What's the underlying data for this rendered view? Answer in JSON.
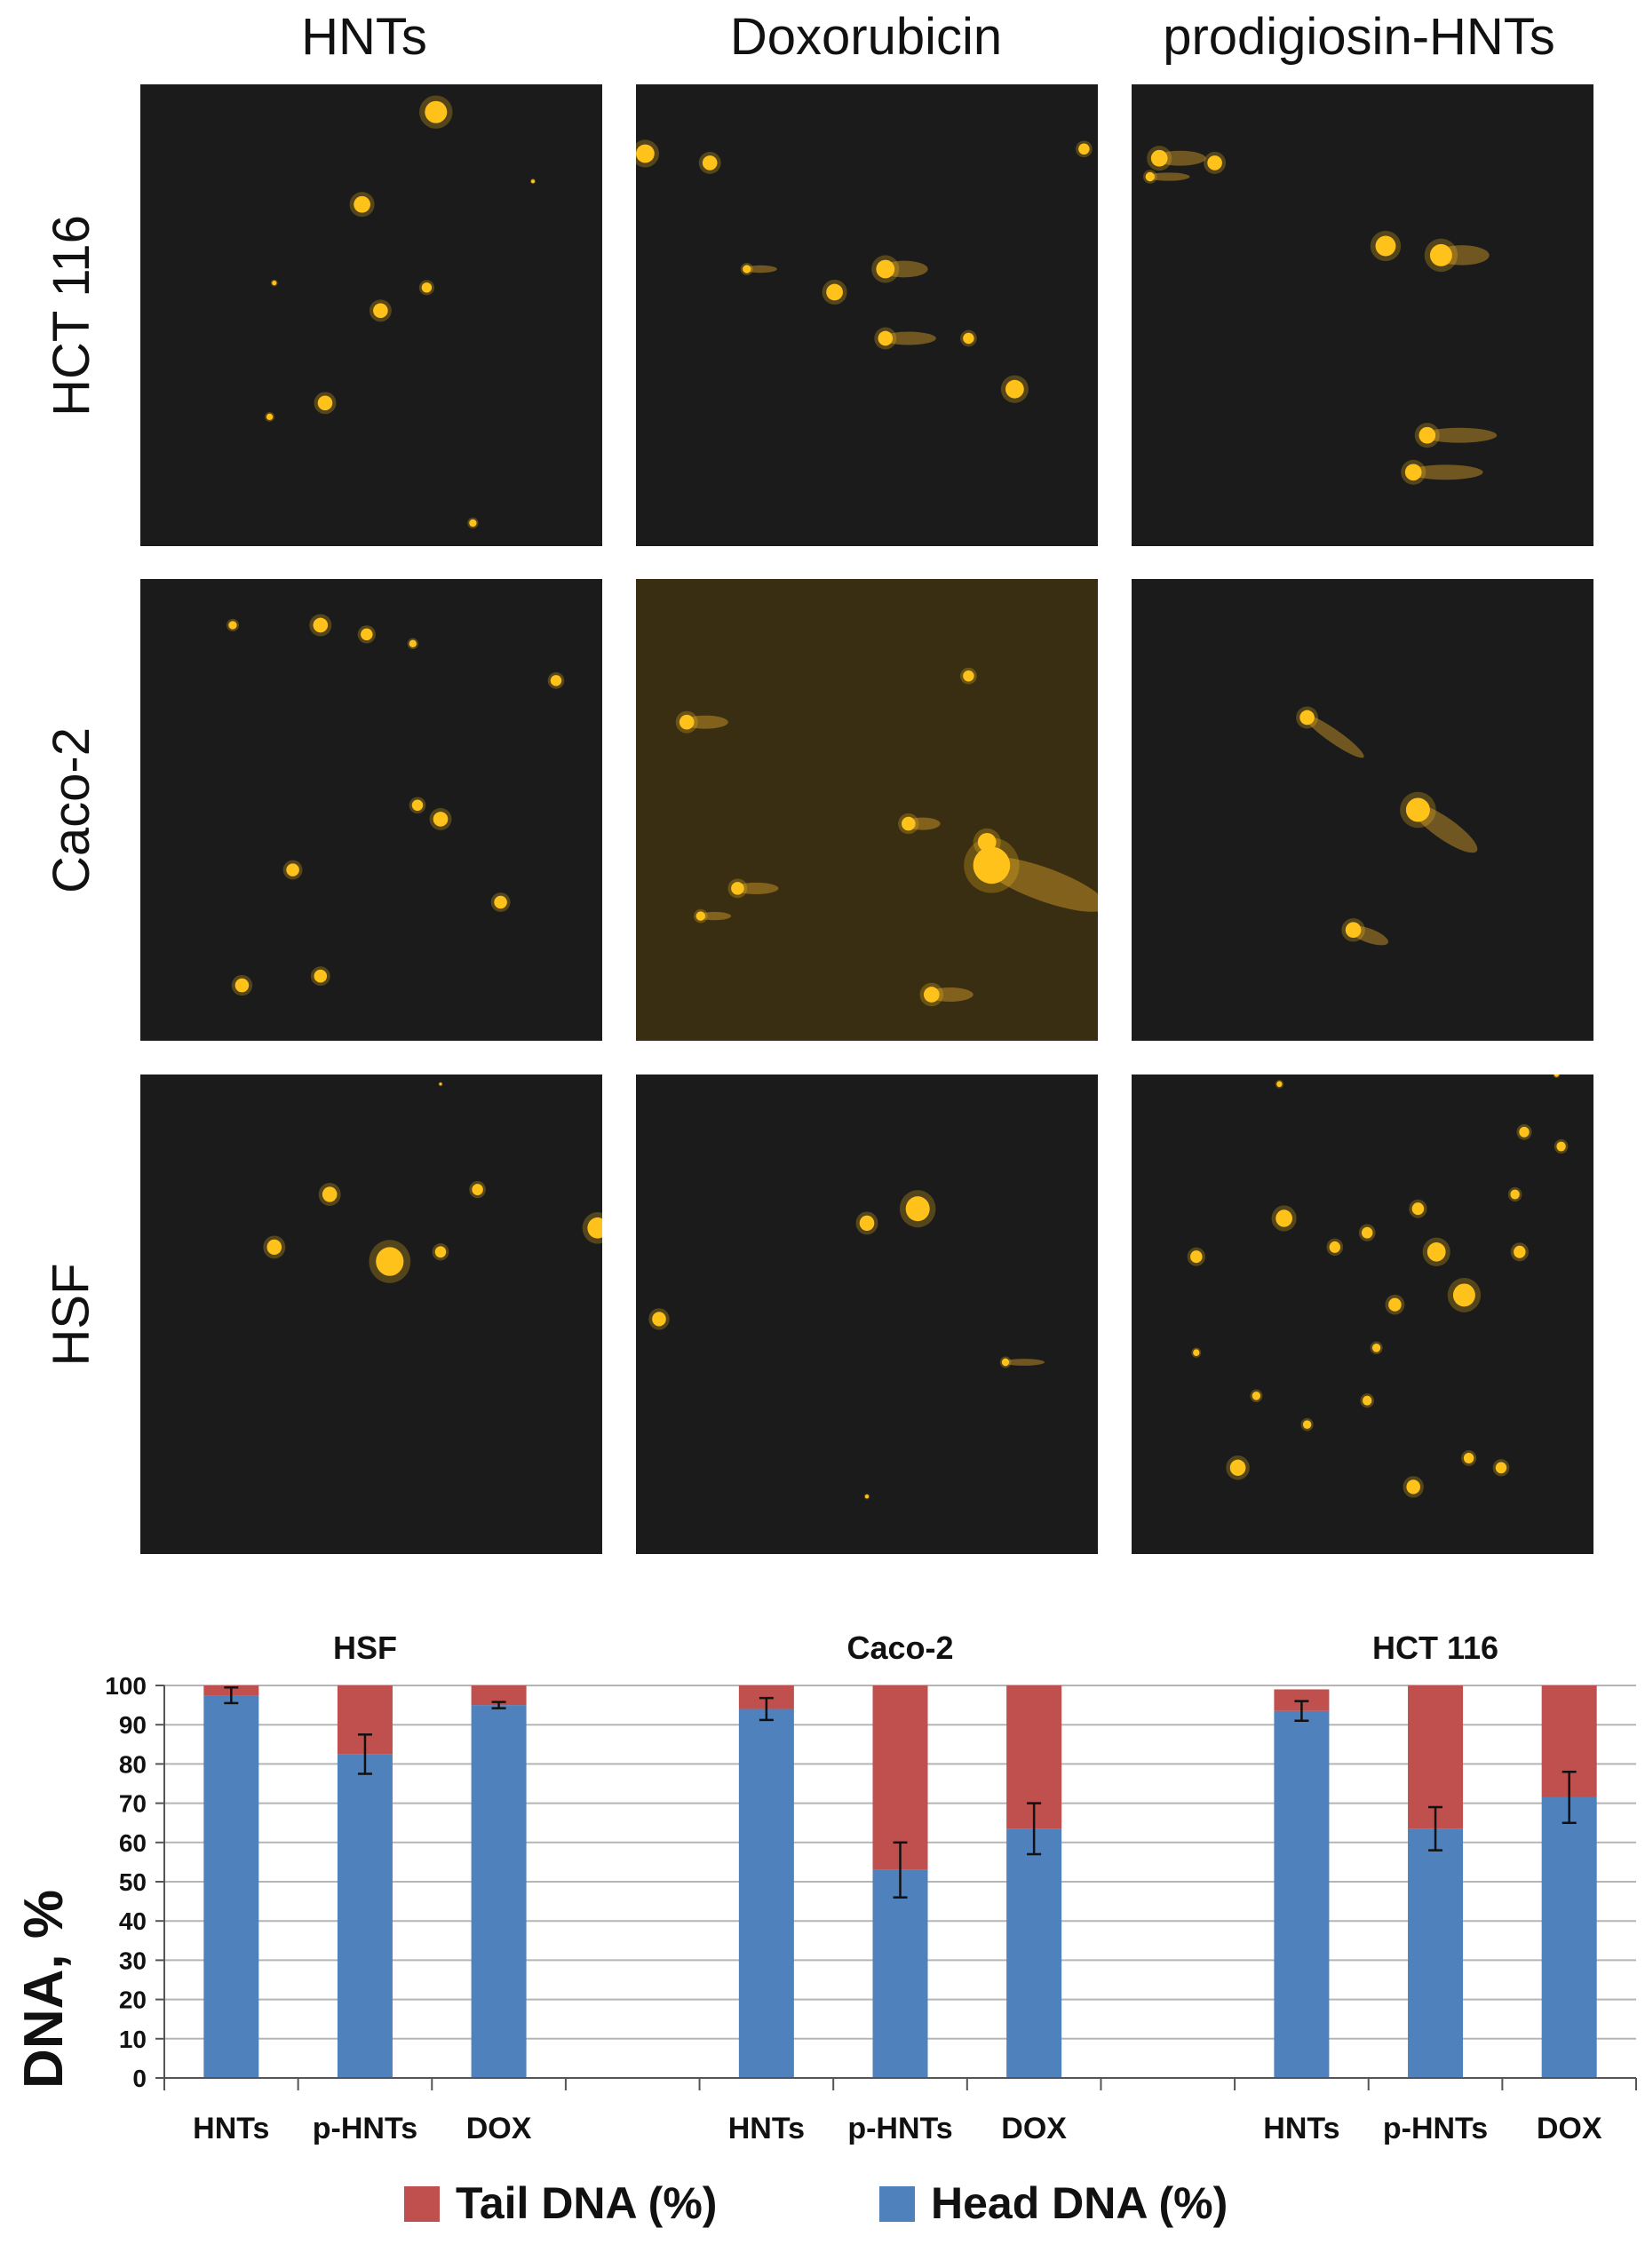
{
  "micrographs": {
    "columns": [
      "HNTs",
      "Doxorubicin",
      "prodigiosin-HNTs"
    ],
    "rows": [
      "HCT 116",
      "Caco-2",
      "HSF"
    ],
    "colors": {
      "background": "#1b1b1b",
      "nucleus": "#ffc21a",
      "comet_tail": "#d9a02a",
      "tint_background": "#3a2e12"
    }
  },
  "chart_data": {
    "type": "bar",
    "stacked": true,
    "groups": [
      {
        "title": "HSF",
        "categories": [
          "HNTs",
          "p-HNTs",
          "DOX"
        ],
        "head": [
          97.5,
          82.5,
          95.0
        ],
        "tail": [
          2.5,
          17.5,
          5.0
        ],
        "error": [
          2.0,
          5.0,
          0.8
        ]
      },
      {
        "title": "Caco-2",
        "categories": [
          "HNTs",
          "p-HNTs",
          "DOX"
        ],
        "head": [
          94.0,
          53.0,
          63.5
        ],
        "tail": [
          6.0,
          47.0,
          36.5
        ],
        "error": [
          2.8,
          7.0,
          6.5
        ]
      },
      {
        "title": "HCT 116",
        "categories": [
          "HNTs",
          "p-HNTs",
          "DOX"
        ],
        "head": [
          93.5,
          63.5,
          71.5
        ],
        "tail": [
          5.5,
          36.5,
          28.5
        ],
        "error": [
          2.5,
          5.5,
          6.5
        ]
      }
    ],
    "series": [
      {
        "name": "Tail DNA (%)",
        "color": "#c0504d"
      },
      {
        "name": "Head DNA (%)",
        "color": "#4f81bd"
      }
    ],
    "ylabel": "DNA, %",
    "ylim": [
      0,
      100
    ],
    "yticks": [
      0,
      10,
      20,
      30,
      40,
      50,
      60,
      70,
      80,
      90,
      100
    ],
    "grid": true,
    "legend": "bottom"
  }
}
